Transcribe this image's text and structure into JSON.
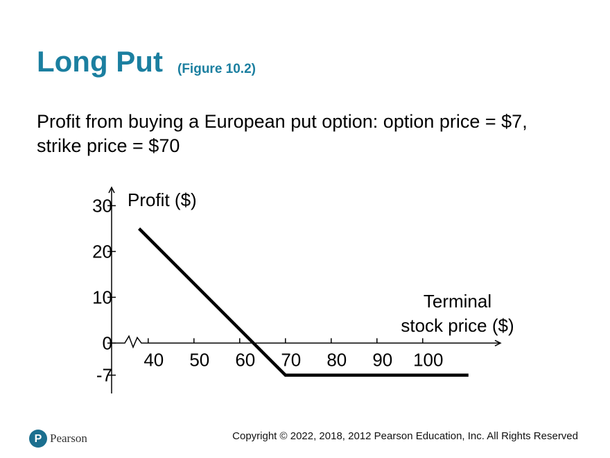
{
  "chart_data": {
    "type": "line",
    "title": "Long Put",
    "subtitle": "(Figure 10.2)",
    "caption": [
      "Profit from buying a European put option: option price = $7,",
      "strike price = $70"
    ],
    "ylabel": "Profit ($)",
    "xlabel": [
      "Terminal",
      "stock price ($)"
    ],
    "x": [
      38,
      70,
      110
    ],
    "values": [
      25,
      -7,
      -7
    ],
    "color": "#000000",
    "xlim": [
      32,
      117
    ],
    "ylim": [
      -11,
      34
    ],
    "xticks": [
      40,
      50,
      60,
      70,
      80,
      90,
      100
    ],
    "yticks": [
      30,
      20,
      10,
      0,
      -7
    ]
  },
  "footer": {
    "logo": "Pearson",
    "copyright": "Copyright © 2022, 2018, 2012 Pearson Education, Inc. All Rights Reserved"
  }
}
